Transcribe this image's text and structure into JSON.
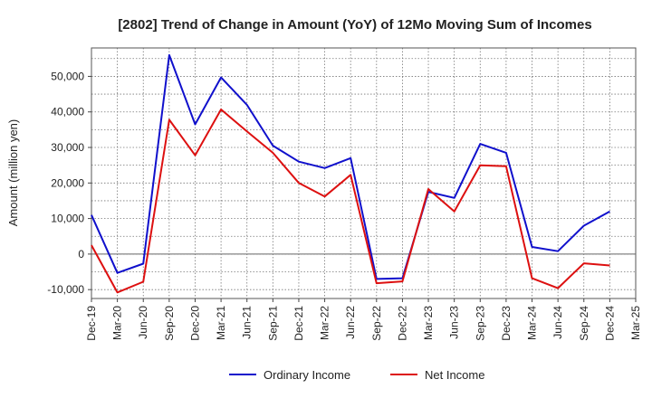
{
  "chart_data": {
    "type": "line",
    "title": "[2802]  Trend of Change in Amount (YoY) of 12Mo Moving Sum of Incomes",
    "xlabel": "",
    "ylabel": "Amount (million yen)",
    "ylim": [
      -12500,
      58000
    ],
    "yticks": [
      -10000,
      0,
      10000,
      20000,
      30000,
      40000,
      50000
    ],
    "ytick_labels": [
      "-10,000",
      "0",
      "10,000",
      "20,000",
      "30,000",
      "40,000",
      "50,000"
    ],
    "categories": [
      "Dec-19",
      "Mar-20",
      "Jun-20",
      "Sep-20",
      "Dec-20",
      "Mar-21",
      "Jun-21",
      "Sep-21",
      "Dec-21",
      "Mar-22",
      "Jun-22",
      "Sep-22",
      "Dec-22",
      "Mar-23",
      "Jun-23",
      "Sep-23",
      "Dec-23",
      "Mar-24",
      "Jun-24",
      "Sep-24",
      "Dec-24",
      "Mar-25"
    ],
    "grid": true,
    "legend_position": "bottom-center",
    "series": [
      {
        "name": "Ordinary Income",
        "color": "#1010cc",
        "values": [
          11000,
          -5300,
          -2700,
          56000,
          36500,
          49700,
          42000,
          30500,
          26000,
          24200,
          27000,
          -7000,
          -6800,
          17500,
          15800,
          31000,
          28500,
          2000,
          800,
          8000,
          12000,
          null
        ]
      },
      {
        "name": "Net Income",
        "color": "#dd1010",
        "values": [
          2500,
          -10800,
          -7800,
          37800,
          27800,
          40700,
          34500,
          28500,
          20000,
          16200,
          22300,
          -8200,
          -7700,
          18300,
          12000,
          25000,
          24700,
          -6800,
          -9600,
          -2600,
          -3200,
          null
        ]
      }
    ]
  }
}
